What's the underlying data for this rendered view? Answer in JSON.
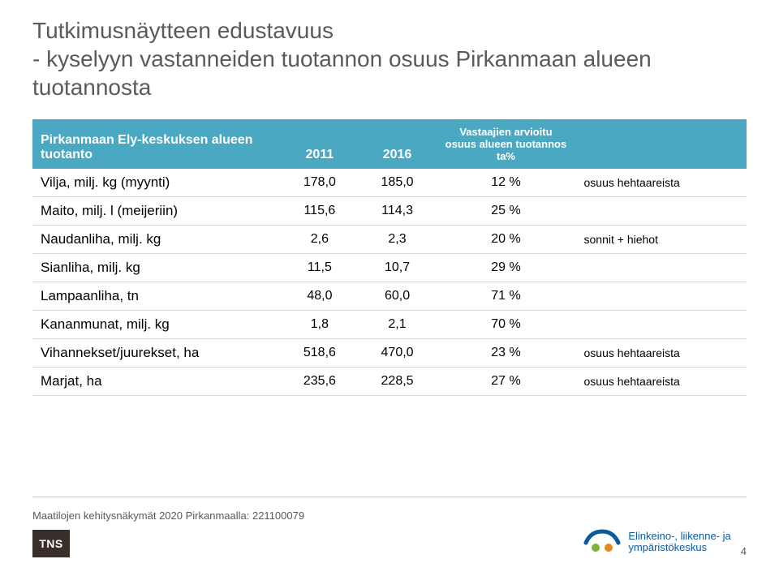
{
  "title": "Tutkimusnäytteen edustavuus\n- kyselyyn vastanneiden tuotannon osuus Pirkanmaan alueen tuotannosta",
  "table": {
    "headers": {
      "col0": "Pirkanmaan Ely-keskuksen alueen tuotanto",
      "col1": "2011",
      "col2": "2016",
      "col3": "Vastaajien arvioitu osuus alueen tuotannos ta%",
      "col4": ""
    },
    "rows": [
      {
        "label": "Vilja, milj. kg (myynti)",
        "v2011": "178,0",
        "v2016": "185,0",
        "pct": "12 %",
        "note": "osuus hehtaareista"
      },
      {
        "label": "Maito, milj. l (meijeriin)",
        "v2011": "115,6",
        "v2016": "114,3",
        "pct": "25 %",
        "note": ""
      },
      {
        "label": "Naudanliha, milj. kg",
        "v2011": "2,6",
        "v2016": "2,3",
        "pct": "20 %",
        "note": "sonnit + hiehot"
      },
      {
        "label": "Sianliha, milj. kg",
        "v2011": "11,5",
        "v2016": "10,7",
        "pct": "29 %",
        "note": ""
      },
      {
        "label": "Lampaanliha, tn",
        "v2011": "48,0",
        "v2016": "60,0",
        "pct": "71 %",
        "note": ""
      },
      {
        "label": "Kananmunat, milj. kg",
        "v2011": "1,8",
        "v2016": "2,1",
        "pct": "70 %",
        "note": ""
      },
      {
        "label": "Vihannekset/juurekset, ha",
        "v2011": "518,6",
        "v2016": "470,0",
        "pct": "23 %",
        "note": "osuus hehtaareista"
      },
      {
        "label": "Marjat, ha",
        "v2011": "235,6",
        "v2016": "228,5",
        "pct": "27 %",
        "note": "osuus hehtaareista"
      }
    ]
  },
  "footer": {
    "note": "Maatilojen kehitysnäkymät 2020 Pirkanmaalla: 221100079",
    "tns": "TNS",
    "ely_line1": "Elinkeino-, liikenne- ja",
    "ely_line2": "ympäristökeskus",
    "page": "4"
  },
  "colors": {
    "header_bg": "#4aa8c2",
    "header_fg": "#ffffff",
    "title_color": "#5a5a5a",
    "row_border": "#d8d8d8",
    "ely_blue": "#0a5a9e",
    "ely_green": "#7bb33a",
    "ely_orange": "#e58a1f",
    "tns_bg": "#3a2e2a"
  }
}
